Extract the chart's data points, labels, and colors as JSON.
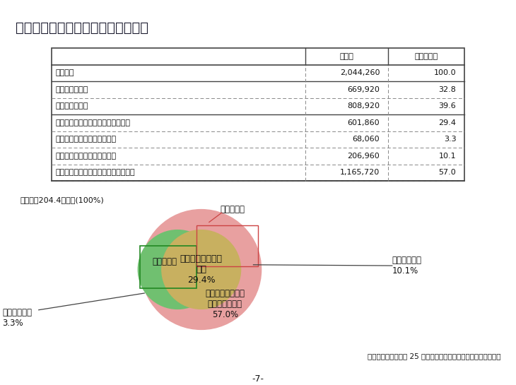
{
  "title": "土地・建物所有状況別法人数・割合",
  "table_headers": [
    "",
    "法人数",
    "割合（％）"
  ],
  "table_rows": [
    [
      "法人総数",
      "2,044,260",
      "100.0"
    ],
    [
      "土地所有法人数",
      "669,920",
      "32.8"
    ],
    [
      "建物所有法人数",
      "808,920",
      "39.6"
    ],
    [
      "土地・建物とも所有している法人数",
      "601,860",
      "29.4"
    ],
    [
      "土地のみ所有している法人数",
      "68,060",
      "3.3"
    ],
    [
      "建物のみ所有している法人数",
      "206,960",
      "10.1"
    ],
    [
      "土地・建物とも所有していない法人数",
      "1,165,720",
      "57.0"
    ]
  ],
  "bg_color": "#f0f0f0",
  "diagram_bg": "#b8b8b8",
  "outer_circle_color": "#e8a0a0",
  "both_color": "#c8b060",
  "green_color": "#70c070",
  "title_color": "#1a1a2e",
  "footer_text": "（国土交通省「平成 25 年法人土地・建物基本調査」より作成）",
  "page_num": "-7-",
  "venn_total_label": "法人総数204.4万法人(100%)",
  "venn_building_label": "建物を所有",
  "venn_both_label": "土地・建物ともに\n所有\n29.4%",
  "venn_land_only_label": "土地のみ所有\n3.3%",
  "venn_building_only_label": "建物のみ所有\n10.1%",
  "venn_neither_label": "土地・建物ともに\n所有していない\n57.0%",
  "venn_rect_label": "建物を所有"
}
